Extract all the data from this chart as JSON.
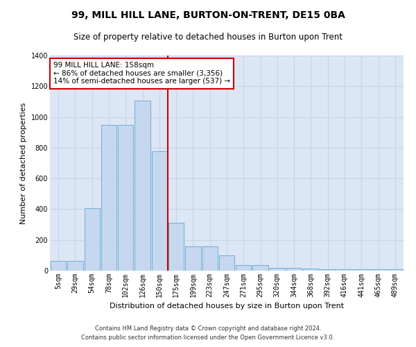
{
  "title": "99, MILL HILL LANE, BURTON-ON-TRENT, DE15 0BA",
  "subtitle": "Size of property relative to detached houses in Burton upon Trent",
  "xlabel": "Distribution of detached houses by size in Burton upon Trent",
  "ylabel": "Number of detached properties",
  "footer_line1": "Contains HM Land Registry data © Crown copyright and database right 2024.",
  "footer_line2": "Contains public sector information licensed under the Open Government Licence v3.0.",
  "annotation_line1": "99 MILL HILL LANE: 158sqm",
  "annotation_line2": "← 86% of detached houses are smaller (3,356)",
  "annotation_line3": "14% of semi-detached houses are larger (537) →",
  "bar_labels": [
    "5sqm",
    "29sqm",
    "54sqm",
    "78sqm",
    "102sqm",
    "126sqm",
    "150sqm",
    "175sqm",
    "199sqm",
    "223sqm",
    "247sqm",
    "271sqm",
    "295sqm",
    "320sqm",
    "344sqm",
    "368sqm",
    "392sqm",
    "416sqm",
    "441sqm",
    "465sqm",
    "489sqm"
  ],
  "bar_values": [
    65,
    65,
    405,
    950,
    950,
    1105,
    775,
    310,
    160,
    160,
    100,
    35,
    35,
    20,
    20,
    15,
    10,
    10,
    10,
    10,
    10
  ],
  "bar_color": "#c5d8f0",
  "bar_edge_color": "#6baed6",
  "grid_color": "#c8d4e8",
  "background_color": "#dce6f5",
  "vline_color": "#cc0000",
  "vline_x": 6.5,
  "ylim": [
    0,
    1400
  ],
  "yticks": [
    0,
    200,
    400,
    600,
    800,
    1000,
    1200,
    1400
  ],
  "box_color": "#cc0000",
  "title_fontsize": 10,
  "subtitle_fontsize": 8.5,
  "tick_fontsize": 7,
  "ylabel_fontsize": 8,
  "xlabel_fontsize": 8
}
